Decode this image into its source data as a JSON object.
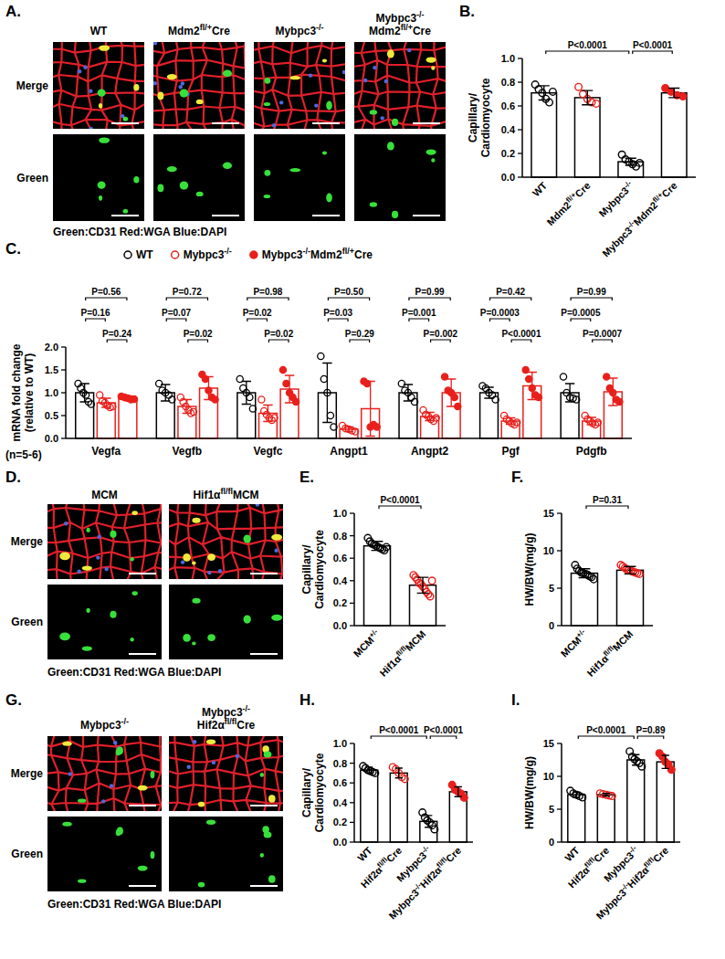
{
  "images": [
    {
      "panel": "A.",
      "columns": [
        [
          "WT"
        ],
        [
          "Mdm2fl/+Cre"
        ],
        [
          "Mybpc3-/-"
        ],
        [
          "Mybpc3-/-",
          "Mdm2fl/+Cre"
        ]
      ],
      "rows": [
        "Merge",
        "Green"
      ],
      "caption": "Green:CD31  Red:WGA  Blue:DAPI"
    },
    {
      "panel": "D.",
      "columns": [
        [
          "MCM"
        ],
        [
          "Hif1αfl/flMCM"
        ]
      ],
      "rows": [
        "Merge",
        "Green"
      ],
      "caption": "Green:CD31   Red:WGA   Blue:DAPI"
    },
    {
      "panel": "G.",
      "columns": [
        [
          "Mybpc3-/-"
        ],
        [
          "Mybpc3-/-",
          "Hif2αfl/flCre"
        ]
      ],
      "rows": [
        "Merge",
        "Green"
      ],
      "caption": "Green:CD31   Red:WGA   Blue:DAPI"
    }
  ],
  "chart_data": [
    {
      "panel": "B.",
      "type": "bar",
      "categories": [
        "WT",
        "Mdm2fl/+Cre",
        "Mybpc3-/-",
        "Mybpc3-/-Mdm2fl/+Cre"
      ],
      "values": [
        0.71,
        0.67,
        0.13,
        0.71
      ],
      "errors": [
        0.06,
        0.06,
        0.03,
        0.04
      ],
      "points": [
        {
          "color": "#000000",
          "marker": "open",
          "values": [
            0.78,
            0.74,
            0.71,
            0.66,
            0.63,
            0.72
          ]
        },
        {
          "color": "#e8201c",
          "marker": "open",
          "values": [
            0.76,
            0.7,
            0.66,
            0.63,
            0.62
          ]
        },
        {
          "color": "#000000",
          "marker": "open",
          "values": [
            0.19,
            0.15,
            0.13,
            0.11,
            0.09,
            0.12
          ]
        },
        {
          "color": "#e8201c",
          "marker": "filled",
          "values": [
            0.75,
            0.72,
            0.69,
            0.68
          ]
        }
      ],
      "color": "#000000",
      "ylim": [
        0,
        1
      ],
      "yticks": [
        {
          "value": 0,
          "label": "0.0"
        },
        0.2,
        0.4,
        0.6,
        0.8,
        {
          "value": 1,
          "label": "1.0"
        }
      ],
      "ylabel": [
        "Capillary/",
        "Cardiomyocyte"
      ],
      "annotations": [
        {
          "text": "P<0.0001",
          "between": [
            "WT",
            "Mybpc3-/-"
          ]
        },
        {
          "text": "P<0.0001",
          "between": [
            "Mybpc3-/-",
            "Mybpc3-/-Mdm2fl/+Cre"
          ]
        }
      ]
    },
    {
      "panel": "C.",
      "type": "bar",
      "categories": [
        "Vegfa",
        "Vegfb",
        "Vegfc",
        "Angpt1",
        "Angpt2",
        "Pgf",
        "Pdgfb"
      ],
      "series": [
        {
          "name": "WT",
          "color": "#000000",
          "marker": "open",
          "values": [
            1.0,
            1.0,
            1.0,
            1.0,
            1.0,
            1.0,
            1.0
          ],
          "errors": [
            0.2,
            0.18,
            0.25,
            0.65,
            0.18,
            0.12,
            0.2
          ],
          "points": [
            [
              1.2,
              1.1,
              1.0,
              0.95,
              0.8,
              0.75
            ],
            [
              1.2,
              1.05,
              1.0,
              0.95,
              0.85
            ],
            [
              1.3,
              1.1,
              1.0,
              0.9,
              0.65
            ],
            [
              1.8,
              1.3,
              1.0,
              0.5,
              0.25
            ],
            [
              1.2,
              1.05,
              1.0,
              0.9,
              0.8
            ],
            [
              1.15,
              1.1,
              1.0,
              0.95,
              0.85
            ],
            [
              1.35,
              1.0,
              0.9,
              0.88,
              0.85
            ]
          ]
        },
        {
          "name": "Mybpc3-/-",
          "color": "#e8201c",
          "marker": "open",
          "values": [
            0.78,
            0.7,
            0.55,
            0.2,
            0.48,
            0.38,
            0.38
          ],
          "errors": [
            0.1,
            0.15,
            0.18,
            0.05,
            0.09,
            0.07,
            0.08
          ],
          "points": [
            [
              0.95,
              0.82,
              0.78,
              0.72,
              0.68,
              0.7
            ],
            [
              0.9,
              0.8,
              0.7,
              0.62,
              0.55,
              0.58
            ],
            [
              0.85,
              0.6,
              0.52,
              0.45,
              0.4,
              0.45
            ],
            [
              0.28,
              0.22,
              0.2,
              0.17,
              0.15
            ],
            [
              0.62,
              0.52,
              0.48,
              0.42,
              0.38,
              0.45
            ],
            [
              0.5,
              0.42,
              0.38,
              0.33,
              0.3,
              0.35
            ],
            [
              0.5,
              0.42,
              0.38,
              0.33,
              0.3,
              0.35
            ]
          ]
        },
        {
          "name": "Mybpc3-/-Mdm2fl/+Cre",
          "color": "#e8201c",
          "marker": "filled",
          "values": [
            0.88,
            1.1,
            1.08,
            0.65,
            1.0,
            1.15,
            1.02
          ],
          "errors": [
            0.05,
            0.25,
            0.3,
            0.6,
            0.3,
            0.3,
            0.3
          ],
          "points": [
            [
              0.92,
              0.9,
              0.88,
              0.85,
              0.86
            ],
            [
              1.4,
              1.3,
              1.05,
              0.9,
              0.85
            ],
            [
              1.5,
              1.2,
              1.0,
              0.9,
              0.8
            ],
            [
              1.25,
              1.2,
              0.25,
              0.3,
              0.25
            ],
            [
              1.35,
              1.05,
              1.0,
              0.9,
              0.7
            ],
            [
              1.5,
              1.3,
              1.1,
              0.95,
              0.9
            ],
            [
              1.35,
              1.1,
              1.0,
              0.85,
              0.8
            ]
          ]
        }
      ],
      "ylim": [
        0,
        2
      ],
      "yticks": [
        {
          "value": 0,
          "label": "0.0"
        },
        0.5,
        {
          "value": 1,
          "label": "1.0"
        },
        1.5,
        {
          "value": 2,
          "label": "2.0"
        }
      ],
      "ylabel": [
        "mRNA  fold change",
        "(relative to WT)"
      ],
      "note": "(n=5-6)",
      "legend": "top",
      "annotations": [
        {
          "text": "P=0.56",
          "category": "Vegfa",
          "between": [
            "WT",
            "Mybpc3-/-Mdm2fl/+Cre"
          ]
        },
        {
          "text": "P=0.16",
          "category": "Vegfa",
          "between": [
            "WT",
            "Mybpc3-/-"
          ]
        },
        {
          "text": "P=0.24",
          "category": "Vegfa",
          "between": [
            "Mybpc3-/-",
            "Mybpc3-/-Mdm2fl/+Cre"
          ]
        },
        {
          "text": "P=0.72",
          "category": "Vegfb",
          "between": [
            "WT",
            "Mybpc3-/-Mdm2fl/+Cre"
          ]
        },
        {
          "text": "P=0.07",
          "category": "Vegfb",
          "between": [
            "WT",
            "Mybpc3-/-"
          ]
        },
        {
          "text": "P=0.02",
          "category": "Vegfb",
          "between": [
            "Mybpc3-/-",
            "Mybpc3-/-Mdm2fl/+Cre"
          ]
        },
        {
          "text": "P=0.98",
          "category": "Vegfc",
          "between": [
            "WT",
            "Mybpc3-/-Mdm2fl/+Cre"
          ]
        },
        {
          "text": "P=0.02",
          "category": "Vegfc",
          "between": [
            "WT",
            "Mybpc3-/-"
          ]
        },
        {
          "text": "P=0.02",
          "category": "Vegfc",
          "between": [
            "Mybpc3-/-",
            "Mybpc3-/-Mdm2fl/+Cre"
          ]
        },
        {
          "text": "P=0.50",
          "category": "Angpt1",
          "between": [
            "WT",
            "Mybpc3-/-Mdm2fl/+Cre"
          ]
        },
        {
          "text": "P=0.03",
          "category": "Angpt1",
          "between": [
            "WT",
            "Mybpc3-/-"
          ]
        },
        {
          "text": "P=0.29",
          "category": "Angpt1",
          "between": [
            "Mybpc3-/-",
            "Mybpc3-/-Mdm2fl/+Cre"
          ]
        },
        {
          "text": "P=0.99",
          "category": "Angpt2",
          "between": [
            "WT",
            "Mybpc3-/-Mdm2fl/+Cre"
          ]
        },
        {
          "text": "P=0.001",
          "category": "Angpt2",
          "between": [
            "WT",
            "Mybpc3-/-"
          ]
        },
        {
          "text": "P=0.002",
          "category": "Angpt2",
          "between": [
            "Mybpc3-/-",
            "Mybpc3-/-Mdm2fl/+Cre"
          ]
        },
        {
          "text": "P=0.42",
          "category": "Pgf",
          "between": [
            "WT",
            "Mybpc3-/-Mdm2fl/+Cre"
          ]
        },
        {
          "text": "P=0.0003",
          "category": "Pgf",
          "between": [
            "WT",
            "Mybpc3-/-"
          ]
        },
        {
          "text": "P<0.0001",
          "category": "Pgf",
          "between": [
            "Mybpc3-/-",
            "Mybpc3-/-Mdm2fl/+Cre"
          ]
        },
        {
          "text": "P=0.99",
          "category": "Pdgfb",
          "between": [
            "WT",
            "Mybpc3-/-Mdm2fl/+Cre"
          ]
        },
        {
          "text": "P=0.0005",
          "category": "Pdgfb",
          "between": [
            "WT",
            "Mybpc3-/-"
          ]
        },
        {
          "text": "P=0.0007",
          "category": "Pdgfb",
          "between": [
            "Mybpc3-/-",
            "Mybpc3-/-Mdm2fl/+Cre"
          ]
        }
      ]
    },
    {
      "panel": "E.",
      "type": "bar",
      "categories": [
        "MCM+/-",
        "Hif1αfl/flMCM"
      ],
      "values": [
        0.71,
        0.36
      ],
      "errors": [
        0.04,
        0.07
      ],
      "points": [
        {
          "color": "#000000",
          "marker": "open",
          "values": [
            0.78,
            0.75,
            0.73,
            0.72,
            0.71,
            0.7,
            0.69,
            0.68,
            0.67,
            0.7
          ]
        },
        {
          "color": "#e8201c",
          "marker": "open",
          "values": [
            0.45,
            0.43,
            0.41,
            0.38,
            0.37,
            0.35,
            0.33,
            0.3,
            0.28,
            0.26,
            0.4
          ]
        }
      ],
      "color": "#000000",
      "ylim": [
        0,
        1
      ],
      "yticks": [
        {
          "value": 0,
          "label": "0.0"
        },
        0.2,
        0.4,
        0.6,
        0.8,
        {
          "value": 1,
          "label": "1.0"
        }
      ],
      "ylabel": [
        "Capillary/",
        "Cardiomyocyte"
      ],
      "annotations": [
        {
          "text": "P<0.0001",
          "between": [
            "MCM+/-",
            "Hif1αfl/flMCM"
          ]
        }
      ]
    },
    {
      "panel": "F.",
      "type": "bar",
      "categories": [
        "MCM+/-",
        "Hif1αfl/flMCM"
      ],
      "values": [
        7.0,
        7.4
      ],
      "errors": [
        0.6,
        0.5
      ],
      "points": [
        {
          "color": "#000000",
          "marker": "open",
          "values": [
            8.1,
            7.6,
            7.3,
            7.1,
            7.0,
            6.9,
            6.8,
            6.6,
            6.5,
            6.2
          ]
        },
        {
          "color": "#e8201c",
          "marker": "open",
          "values": [
            8.1,
            7.9,
            7.7,
            7.5,
            7.4,
            7.3,
            7.2,
            7.1,
            7.0,
            6.9
          ]
        }
      ],
      "color": "#000000",
      "ylim": [
        0,
        15
      ],
      "yticks": [
        0,
        5,
        10,
        15
      ],
      "ylabel": [
        "HW/BW(mg/g)"
      ],
      "annotations": [
        {
          "text": "P=0.31",
          "between": [
            "MCM+/-",
            "Hif1αfl/flMCM"
          ]
        }
      ]
    },
    {
      "panel": "H.",
      "type": "bar",
      "categories": [
        "WT",
        "Hif2αfl/flCre",
        "Mybpc3-/-",
        "Mybpc3-/-Hif2αfl/flCre"
      ],
      "values": [
        0.73,
        0.7,
        0.21,
        0.51
      ],
      "errors": [
        0.03,
        0.05,
        0.06,
        0.05
      ],
      "points": [
        {
          "color": "#000000",
          "marker": "open",
          "values": [
            0.77,
            0.75,
            0.73,
            0.72,
            0.71,
            0.7
          ]
        },
        {
          "color": "#e8201c",
          "marker": "open",
          "values": [
            0.76,
            0.74,
            0.7,
            0.66,
            0.64
          ]
        },
        {
          "color": "#000000",
          "marker": "open",
          "values": [
            0.3,
            0.25,
            0.22,
            0.2,
            0.17,
            0.13
          ]
        },
        {
          "color": "#e8201c",
          "marker": "filled",
          "values": [
            0.58,
            0.53,
            0.51,
            0.49,
            0.45
          ]
        }
      ],
      "color": "#000000",
      "ylim": [
        0,
        1
      ],
      "yticks": [
        {
          "value": 0,
          "label": "0.0"
        },
        0.2,
        0.4,
        0.6,
        0.8,
        {
          "value": 1,
          "label": "1.0"
        }
      ],
      "ylabel": [
        "Capillary/",
        "Cardiomyocyte"
      ],
      "annotations": [
        {
          "text": "P<0.0001",
          "between": [
            "WT",
            "Mybpc3-/-"
          ]
        },
        {
          "text": "P<0.0001",
          "between": [
            "Mybpc3-/-",
            "Mybpc3-/-Hif2αfl/flCre"
          ]
        }
      ]
    },
    {
      "panel": "I.",
      "type": "bar",
      "categories": [
        "WT",
        "Hif2αfl/flCre",
        "Mybpc3-/-",
        "Mybpc3-/-Hif2αfl/flCre"
      ],
      "values": [
        7.2,
        7.2,
        12.5,
        12.2
      ],
      "errors": [
        0.4,
        0.2,
        0.8,
        1.0
      ],
      "points": [
        {
          "color": "#000000",
          "marker": "open",
          "values": [
            7.8,
            7.4,
            7.2,
            7.0,
            6.8
          ]
        },
        {
          "color": "#e8201c",
          "marker": "open",
          "values": [
            7.4,
            7.3,
            7.2,
            7.1,
            7.0
          ]
        },
        {
          "color": "#000000",
          "marker": "open",
          "values": [
            13.8,
            13.0,
            12.6,
            12.3,
            12.0,
            11.5
          ]
        },
        {
          "color": "#e8201c",
          "marker": "filled",
          "values": [
            13.5,
            13.0,
            12.2,
            11.8,
            11.0
          ]
        }
      ],
      "color": "#000000",
      "ylim": [
        0,
        15
      ],
      "yticks": [
        0,
        5,
        10,
        15
      ],
      "ylabel": [
        "HW/BW(mg/g)"
      ],
      "annotations": [
        {
          "text": "P<0.0001",
          "between": [
            "WT",
            "Mybpc3-/-"
          ]
        },
        {
          "text": "P=0.89",
          "between": [
            "Mybpc3-/-",
            "Mybpc3-/-Hif2αfl/flCre"
          ]
        }
      ]
    }
  ]
}
